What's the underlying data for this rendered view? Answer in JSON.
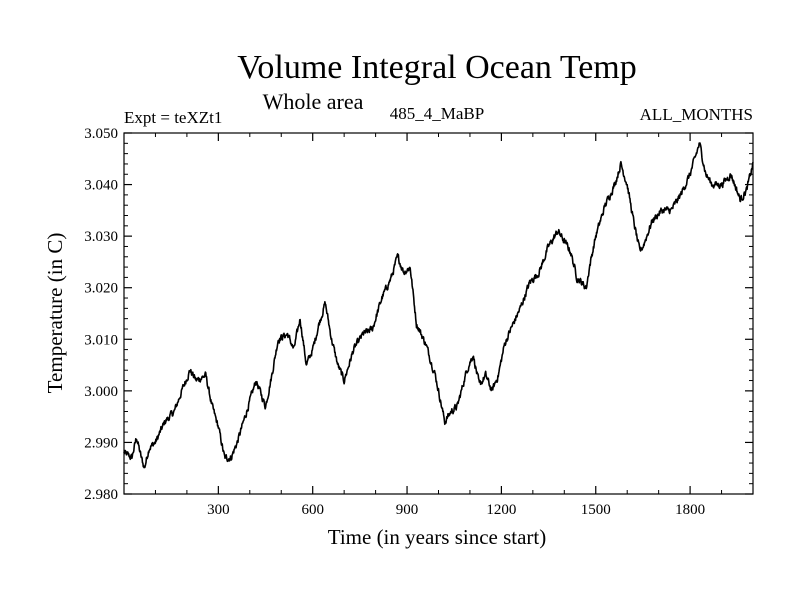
{
  "chart_data": {
    "type": "line",
    "title": "Volume Integral Ocean Temp",
    "subtitle": "Whole area",
    "left_label": "Expt = teXZt1",
    "center_label": "485_4_MaBP",
    "right_label": "ALL_MONTHS",
    "xlabel": "Time (in years since start)",
    "ylabel": "Temperature (in C)",
    "xlim": [
      0,
      2000
    ],
    "ylim": [
      2.98,
      3.05
    ],
    "x_ticks": [
      300,
      600,
      900,
      1200,
      1500,
      1800
    ],
    "x_tick_labels": [
      "300",
      "600",
      "900",
      "1200",
      "1500",
      "1800"
    ],
    "y_ticks": [
      2.98,
      2.99,
      3.0,
      3.01,
      3.02,
      3.03,
      3.04,
      3.05
    ],
    "y_tick_labels": [
      "2.980",
      "2.990",
      "3.000",
      "3.010",
      "3.020",
      "3.030",
      "3.040",
      "3.050"
    ],
    "grid": false,
    "series": [
      {
        "name": "Volume Integral Ocean Temp",
        "color": "#000000",
        "x": [
          0,
          25,
          40,
          55,
          65,
          80,
          100,
          130,
          160,
          190,
          210,
          230,
          260,
          280,
          300,
          320,
          340,
          360,
          390,
          420,
          450,
          470,
          490,
          520,
          540,
          560,
          580,
          600,
          620,
          640,
          660,
          680,
          700,
          730,
          760,
          790,
          820,
          850,
          870,
          890,
          910,
          930,
          960,
          990,
          1020,
          1040,
          1060,
          1090,
          1110,
          1130,
          1150,
          1170,
          1190,
          1210,
          1230,
          1260,
          1290,
          1320,
          1350,
          1380,
          1400,
          1420,
          1440,
          1470,
          1480,
          1500,
          1530,
          1560,
          1580,
          1600,
          1620,
          1640,
          1650,
          1680,
          1710,
          1740,
          1770,
          1800,
          1830,
          1850,
          1870,
          1900,
          1930,
          1960,
          1980,
          2000
        ],
        "y": [
          2.988,
          2.987,
          2.991,
          2.987,
          2.985,
          2.989,
          2.99,
          2.994,
          2.996,
          3.001,
          3.004,
          3.002,
          3.003,
          2.997,
          2.993,
          2.987,
          2.987,
          2.99,
          2.996,
          3.002,
          2.997,
          3.003,
          3.01,
          3.011,
          3.008,
          3.014,
          3.005,
          3.008,
          3.013,
          3.017,
          3.01,
          3.005,
          3.002,
          3.008,
          3.011,
          3.012,
          3.018,
          3.022,
          3.026,
          3.023,
          3.024,
          3.013,
          3.009,
          3.003,
          2.994,
          2.996,
          2.997,
          3.004,
          3.007,
          3.001,
          3.003,
          3.0,
          3.003,
          3.009,
          3.012,
          3.016,
          3.021,
          3.023,
          3.028,
          3.031,
          3.029,
          3.027,
          3.022,
          3.02,
          3.024,
          3.03,
          3.036,
          3.04,
          3.044,
          3.04,
          3.033,
          3.027,
          3.028,
          3.033,
          3.035,
          3.035,
          3.038,
          3.042,
          3.048,
          3.042,
          3.04,
          3.04,
          3.042,
          3.037,
          3.039,
          3.044
        ]
      }
    ]
  }
}
